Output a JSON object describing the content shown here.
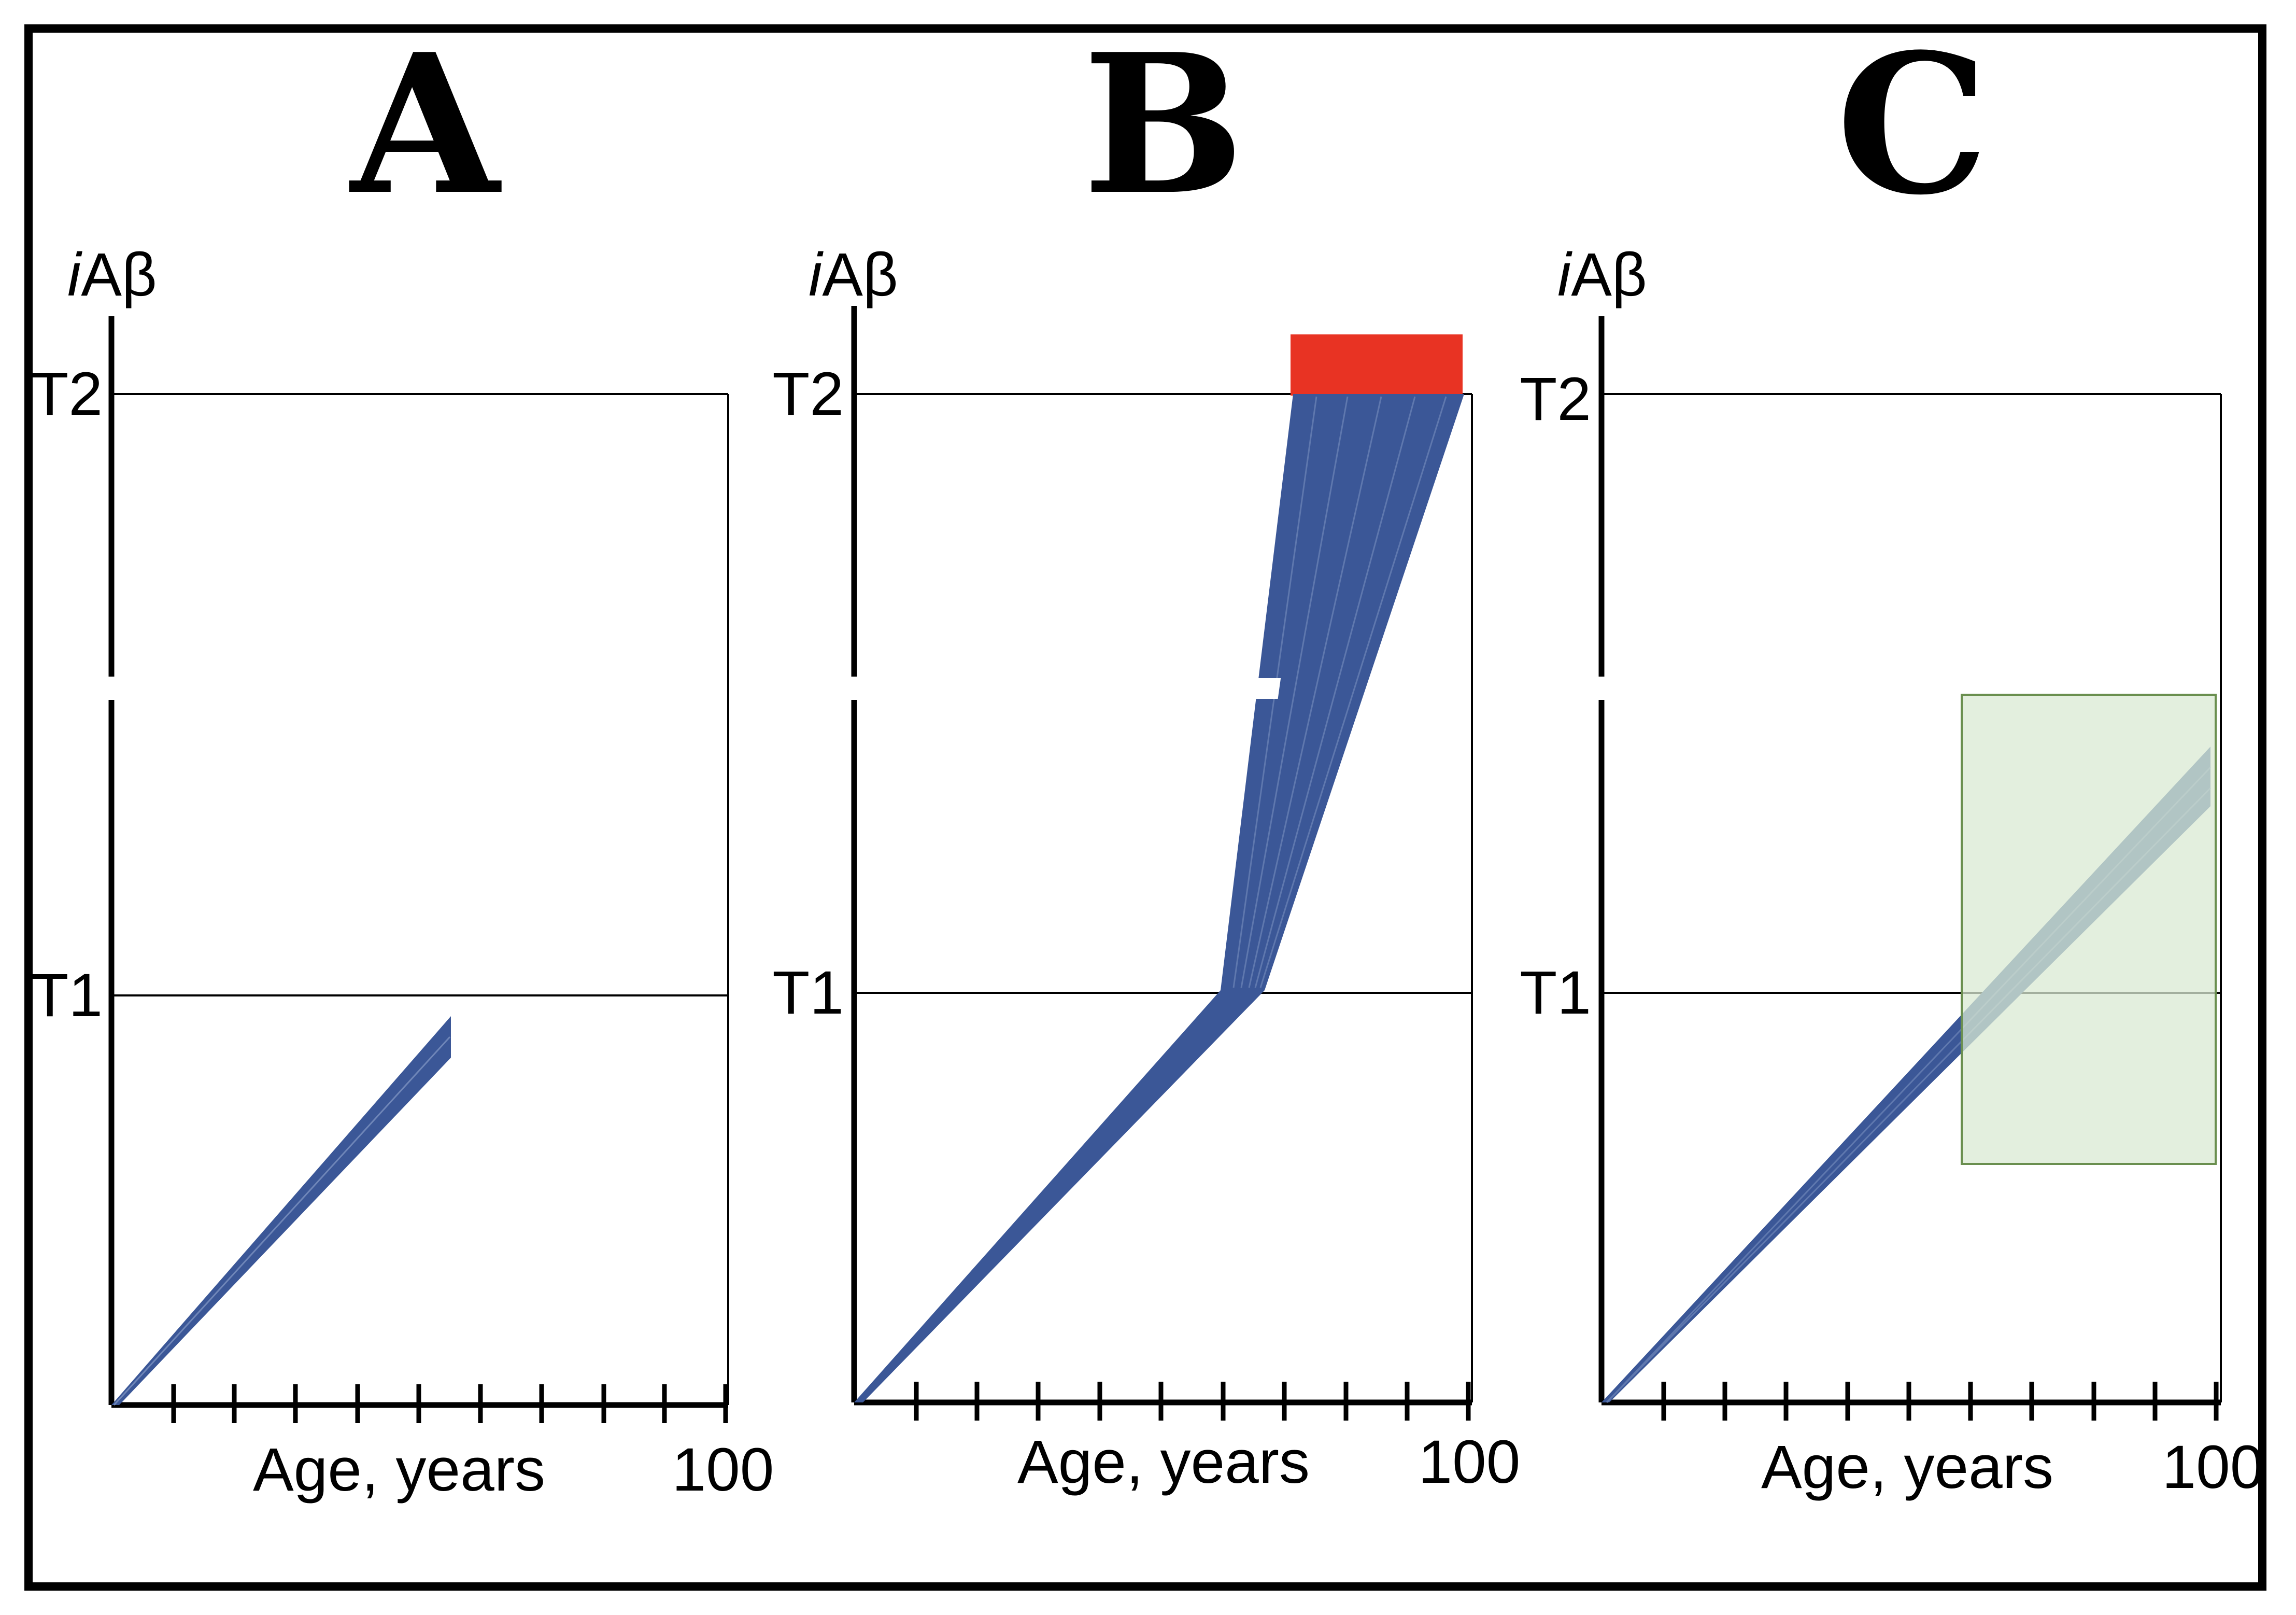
{
  "figure": {
    "description_free": true,
    "panels": [
      {
        "id": "A",
        "letter": "A",
        "y_axis_label_italic": "i",
        "y_axis_label_rest": "Aβ",
        "threshold_labels": [
          "T2",
          "T1"
        ],
        "x_axis_label": "Age, years",
        "x_axis_max_label": "100",
        "x_ticks": 10,
        "trajectory_end_age_fraction": 0.55,
        "trajectory_end_level_fraction": 0.9
      },
      {
        "id": "B",
        "letter": "B",
        "y_axis_label_italic": "i",
        "y_axis_label_rest": "Aβ",
        "threshold_labels": [
          "T2",
          "T1"
        ],
        "x_axis_label": "Age, years",
        "x_axis_max_label": "100",
        "x_ticks": 10,
        "marker": "red-bar-above-T2"
      },
      {
        "id": "C",
        "letter": "C",
        "y_axis_label_italic": "i",
        "y_axis_label_rest": "Aβ",
        "threshold_labels": [
          "T2",
          "T1"
        ],
        "x_axis_label": "Age, years",
        "x_axis_max_label": "100",
        "x_ticks": 10,
        "marker": "green-window"
      }
    ],
    "colors": {
      "trajectory": "#3b5797",
      "trajectory_highlight": "#4d6aa8",
      "red_marker": "#e83323",
      "green_fill": "#d9ead3",
      "green_stroke": "#6a8f4f",
      "frame": "#000000"
    }
  }
}
